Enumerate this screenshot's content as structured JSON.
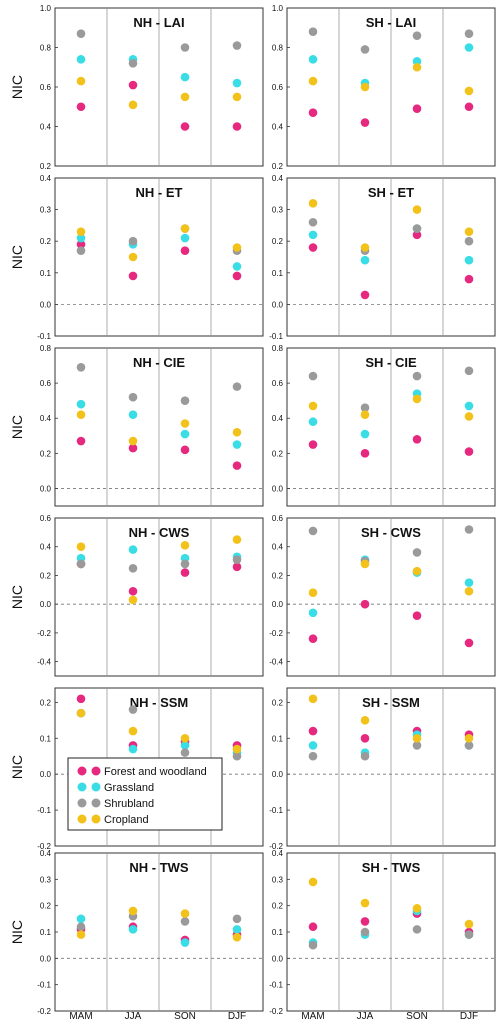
{
  "figure": {
    "ylabel": "NIC",
    "seasons": [
      "MAM",
      "JJA",
      "SON",
      "DJF"
    ],
    "legend": [
      {
        "name": "Forest and woodland",
        "color": "#e6287f"
      },
      {
        "name": "Grassland",
        "color": "#38dde6"
      },
      {
        "name": "Shrubland",
        "color": "#9a9a9a"
      },
      {
        "name": "Cropland",
        "color": "#f2c21b"
      }
    ]
  },
  "chart_data": [
    {
      "type": "scatter",
      "title": "NH - LAI",
      "ylabel": "NIC",
      "categories": [
        "MAM",
        "JJA",
        "SON",
        "DJF"
      ],
      "ylim": [
        0.2,
        1.0
      ],
      "yticks": [
        "1.0",
        "0.8",
        "0.6",
        "0.4",
        "0.2"
      ],
      "zero_line": false,
      "series": [
        {
          "name": "Forest and woodland",
          "values": [
            0.5,
            0.61,
            0.4,
            0.4
          ]
        },
        {
          "name": "Grassland",
          "values": [
            0.74,
            0.74,
            0.65,
            0.62
          ]
        },
        {
          "name": "Shrubland",
          "values": [
            0.87,
            0.72,
            0.8,
            0.81
          ]
        },
        {
          "name": "Cropland",
          "values": [
            0.63,
            0.51,
            0.55,
            0.55
          ]
        }
      ]
    },
    {
      "type": "scatter",
      "title": "SH - LAI",
      "ylabel": "",
      "categories": [
        "MAM",
        "JJA",
        "SON",
        "DJF"
      ],
      "ylim": [
        0.2,
        1.0
      ],
      "yticks": [
        "1.0",
        "0.8",
        "0.6",
        "0.4",
        "0.2"
      ],
      "zero_line": false,
      "series": [
        {
          "name": "Forest and woodland",
          "values": [
            0.47,
            0.42,
            0.49,
            0.5
          ]
        },
        {
          "name": "Grassland",
          "values": [
            0.74,
            0.62,
            0.73,
            0.8
          ]
        },
        {
          "name": "Shrubland",
          "values": [
            0.88,
            0.79,
            0.86,
            0.87
          ]
        },
        {
          "name": "Cropland",
          "values": [
            0.63,
            0.6,
            0.7,
            0.58
          ]
        }
      ]
    },
    {
      "type": "scatter",
      "title": "NH - ET",
      "ylabel": "NIC",
      "categories": [
        "MAM",
        "JJA",
        "SON",
        "DJF"
      ],
      "ylim": [
        -0.1,
        0.4
      ],
      "yticks": [
        "0.4",
        "0.3",
        "0.2",
        "0.1",
        "0.0",
        "-0.1"
      ],
      "zero_line": true,
      "series": [
        {
          "name": "Forest and woodland",
          "values": [
            0.19,
            0.09,
            0.17,
            0.09
          ]
        },
        {
          "name": "Grassland",
          "values": [
            0.21,
            0.19,
            0.21,
            0.12
          ]
        },
        {
          "name": "Shrubland",
          "values": [
            0.17,
            0.2,
            0.24,
            0.17
          ]
        },
        {
          "name": "Cropland",
          "values": [
            0.23,
            0.15,
            0.24,
            0.18
          ]
        }
      ]
    },
    {
      "type": "scatter",
      "title": "SH - ET",
      "ylabel": "",
      "categories": [
        "MAM",
        "JJA",
        "SON",
        "DJF"
      ],
      "ylim": [
        -0.1,
        0.4
      ],
      "yticks": [
        "0.4",
        "0.3",
        "0.2",
        "0.1",
        "0.0",
        "-0.1"
      ],
      "zero_line": true,
      "series": [
        {
          "name": "Forest and woodland",
          "values": [
            0.18,
            0.03,
            0.22,
            0.08
          ]
        },
        {
          "name": "Grassland",
          "values": [
            0.22,
            0.14,
            0.24,
            0.14
          ]
        },
        {
          "name": "Shrubland",
          "values": [
            0.26,
            0.17,
            0.24,
            0.2
          ]
        },
        {
          "name": "Cropland",
          "values": [
            0.32,
            0.18,
            0.3,
            0.23
          ]
        }
      ]
    },
    {
      "type": "scatter",
      "title": "NH - CIE",
      "ylabel": "NIC",
      "categories": [
        "MAM",
        "JJA",
        "SON",
        "DJF"
      ],
      "ylim": [
        -0.1,
        0.8
      ],
      "yticks": [
        "0.8",
        "0.6",
        "0.4",
        "0.2",
        "0.0"
      ],
      "zero_line": true,
      "series": [
        {
          "name": "Forest and woodland",
          "values": [
            0.27,
            0.23,
            0.22,
            0.13
          ]
        },
        {
          "name": "Grassland",
          "values": [
            0.48,
            0.42,
            0.31,
            0.25
          ]
        },
        {
          "name": "Shrubland",
          "values": [
            0.69,
            0.52,
            0.5,
            0.58
          ]
        },
        {
          "name": "Cropland",
          "values": [
            0.42,
            0.27,
            0.37,
            0.32
          ]
        }
      ]
    },
    {
      "type": "scatter",
      "title": "SH - CIE",
      "ylabel": "",
      "categories": [
        "MAM",
        "JJA",
        "SON",
        "DJF"
      ],
      "ylim": [
        -0.1,
        0.8
      ],
      "yticks": [
        "0.8",
        "0.6",
        "0.4",
        "0.2",
        "0.0"
      ],
      "zero_line": true,
      "series": [
        {
          "name": "Forest and woodland",
          "values": [
            0.25,
            0.2,
            0.28,
            0.21
          ]
        },
        {
          "name": "Grassland",
          "values": [
            0.38,
            0.31,
            0.54,
            0.47
          ]
        },
        {
          "name": "Shrubland",
          "values": [
            0.64,
            0.46,
            0.64,
            0.67
          ]
        },
        {
          "name": "Cropland",
          "values": [
            0.47,
            0.42,
            0.51,
            0.41
          ]
        }
      ]
    },
    {
      "type": "scatter",
      "title": "NH - CWS",
      "ylabel": "NIC",
      "categories": [
        "MAM",
        "JJA",
        "SON",
        "DJF"
      ],
      "ylim": [
        -0.5,
        0.6
      ],
      "yticks": [
        "0.6",
        "0.4",
        "0.2",
        "0.0",
        "-0.2",
        "-0.4"
      ],
      "zero_line": true,
      "series": [
        {
          "name": "Forest and woodland",
          "values": [
            0.28,
            0.09,
            0.22,
            0.26
          ]
        },
        {
          "name": "Grassland",
          "values": [
            0.32,
            0.38,
            0.32,
            0.33
          ]
        },
        {
          "name": "Shrubland",
          "values": [
            0.28,
            0.25,
            0.28,
            0.31
          ]
        },
        {
          "name": "Cropland",
          "values": [
            0.4,
            0.03,
            0.41,
            0.45
          ]
        }
      ]
    },
    {
      "type": "scatter",
      "title": "SH - CWS",
      "ylabel": "",
      "categories": [
        "MAM",
        "JJA",
        "SON",
        "DJF"
      ],
      "ylim": [
        -0.5,
        0.6
      ],
      "yticks": [
        "0.6",
        "0.4",
        "0.2",
        "0.0",
        "-0.2",
        "-0.4"
      ],
      "zero_line": true,
      "series": [
        {
          "name": "Forest and woodland",
          "values": [
            -0.24,
            0.0,
            -0.08,
            -0.27
          ]
        },
        {
          "name": "Grassland",
          "values": [
            -0.06,
            0.31,
            0.22,
            0.15
          ]
        },
        {
          "name": "Shrubland",
          "values": [
            0.51,
            0.3,
            0.36,
            0.52
          ]
        },
        {
          "name": "Cropland",
          "values": [
            0.08,
            0.28,
            0.23,
            0.09
          ]
        }
      ]
    },
    {
      "type": "scatter",
      "title": "NH - SSM",
      "ylabel": "NIC",
      "categories": [
        "MAM",
        "JJA",
        "SON",
        "DJF"
      ],
      "ylim": [
        -0.2,
        0.24
      ],
      "yticks": [
        "0.2",
        "0.1",
        "0.0",
        "-0.1",
        "-0.2"
      ],
      "zero_line": true,
      "series": [
        {
          "name": "Forest and woodland",
          "values": [
            0.21,
            0.08,
            0.09,
            0.08
          ]
        },
        {
          "name": "Grassland",
          "values": [
            0.17,
            0.07,
            0.08,
            0.06
          ]
        },
        {
          "name": "Shrubland",
          "values": [
            0.17,
            0.18,
            0.06,
            0.05
          ]
        },
        {
          "name": "Cropland",
          "values": [
            0.17,
            0.12,
            0.1,
            0.07
          ]
        }
      ]
    },
    {
      "type": "scatter",
      "title": "SH - SSM",
      "ylabel": "",
      "categories": [
        "MAM",
        "JJA",
        "SON",
        "DJF"
      ],
      "ylim": [
        -0.2,
        0.24
      ],
      "yticks": [
        "0.2",
        "0.1",
        "0.0",
        "-0.1",
        "-0.2"
      ],
      "zero_line": true,
      "series": [
        {
          "name": "Forest and woodland",
          "values": [
            0.12,
            0.1,
            0.12,
            0.11
          ]
        },
        {
          "name": "Grassland",
          "values": [
            0.08,
            0.06,
            0.11,
            0.08
          ]
        },
        {
          "name": "Shrubland",
          "values": [
            0.05,
            0.05,
            0.08,
            0.08
          ]
        },
        {
          "name": "Cropland",
          "values": [
            0.21,
            0.15,
            0.1,
            0.1
          ]
        }
      ]
    },
    {
      "type": "scatter",
      "title": "NH - TWS",
      "ylabel": "NIC",
      "categories": [
        "MAM",
        "JJA",
        "SON",
        "DJF"
      ],
      "ylim": [
        -0.2,
        0.4
      ],
      "yticks": [
        "0.4",
        "0.3",
        "0.2",
        "0.1",
        "0.0",
        "-0.1",
        "-0.2"
      ],
      "zero_line": true,
      "series": [
        {
          "name": "Forest and woodland",
          "values": [
            0.11,
            0.12,
            0.07,
            0.09
          ]
        },
        {
          "name": "Grassland",
          "values": [
            0.15,
            0.11,
            0.06,
            0.11
          ]
        },
        {
          "name": "Shrubland",
          "values": [
            0.12,
            0.16,
            0.14,
            0.15
          ]
        },
        {
          "name": "Cropland",
          "values": [
            0.09,
            0.18,
            0.17,
            0.08
          ]
        }
      ]
    },
    {
      "type": "scatter",
      "title": "SH - TWS",
      "ylabel": "",
      "categories": [
        "MAM",
        "JJA",
        "SON",
        "DJF"
      ],
      "ylim": [
        -0.2,
        0.4
      ],
      "yticks": [
        "0.4",
        "0.3",
        "0.2",
        "0.1",
        "0.0",
        "-0.1",
        "-0.2"
      ],
      "zero_line": true,
      "series": [
        {
          "name": "Forest and woodland",
          "values": [
            0.12,
            0.14,
            0.17,
            0.1
          ]
        },
        {
          "name": "Grassland",
          "values": [
            0.06,
            0.09,
            0.18,
            0.09
          ]
        },
        {
          "name": "Shrubland",
          "values": [
            0.05,
            0.1,
            0.11,
            0.09
          ]
        },
        {
          "name": "Cropland",
          "values": [
            0.29,
            0.21,
            0.19,
            0.13
          ]
        }
      ]
    }
  ]
}
